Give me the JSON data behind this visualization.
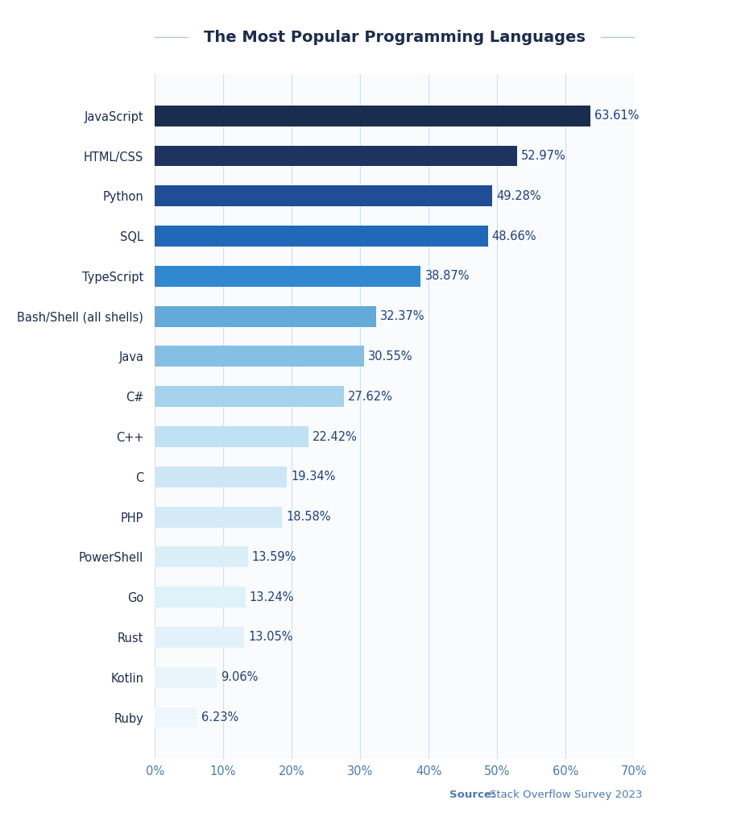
{
  "title": "The Most Popular Programming Languages",
  "categories": [
    "JavaScript",
    "HTML/CSS",
    "Python",
    "SQL",
    "TypeScript",
    "Bash/Shell (all shells)",
    "Java",
    "C#",
    "C++",
    "C",
    "PHP",
    "PowerShell",
    "Go",
    "Rust",
    "Kotlin",
    "Ruby"
  ],
  "values": [
    63.61,
    52.97,
    49.28,
    48.66,
    38.87,
    32.37,
    30.55,
    27.62,
    22.42,
    19.34,
    18.58,
    13.59,
    13.24,
    13.05,
    9.06,
    6.23
  ],
  "labels": [
    "63.61%",
    "52.97%",
    "49.28%",
    "48.66%",
    "38.87%",
    "32.37%",
    "30.55%",
    "27.62%",
    "22.42%",
    "19.34%",
    "18.58%",
    "13.59%",
    "13.24%",
    "13.05%",
    "9.06%",
    "6.23%"
  ],
  "bar_colors": [
    "#1b2d4e",
    "#1d3460",
    "#1f4e96",
    "#2068b8",
    "#3089d0",
    "#62aad8",
    "#85c0e4",
    "#a6d2ed",
    "#c0e0f4",
    "#cde6f6",
    "#d4eaf7",
    "#daeef8",
    "#dff1f9",
    "#e3f2fa",
    "#eaf5fb",
    "#eef7fd"
  ],
  "background_color": "#ffffff",
  "plot_bg_color": "#f9fbfd",
  "title_color": "#1b2d4e",
  "label_color": "#1e4080",
  "tick_color": "#4a7ab5",
  "yticklabel_color": "#1b2d4e",
  "grid_color": "#d0dff0",
  "line_color": "#b0c8de",
  "source_bold": "Source:",
  "source_text": "  Stack Overflow Survey 2023",
  "xlim": [
    0,
    70
  ],
  "xticks": [
    0,
    10,
    20,
    30,
    40,
    50,
    60,
    70
  ],
  "xtick_labels": [
    "0%",
    "10%",
    "20%",
    "30%",
    "40%",
    "50%",
    "60%",
    "70%"
  ]
}
